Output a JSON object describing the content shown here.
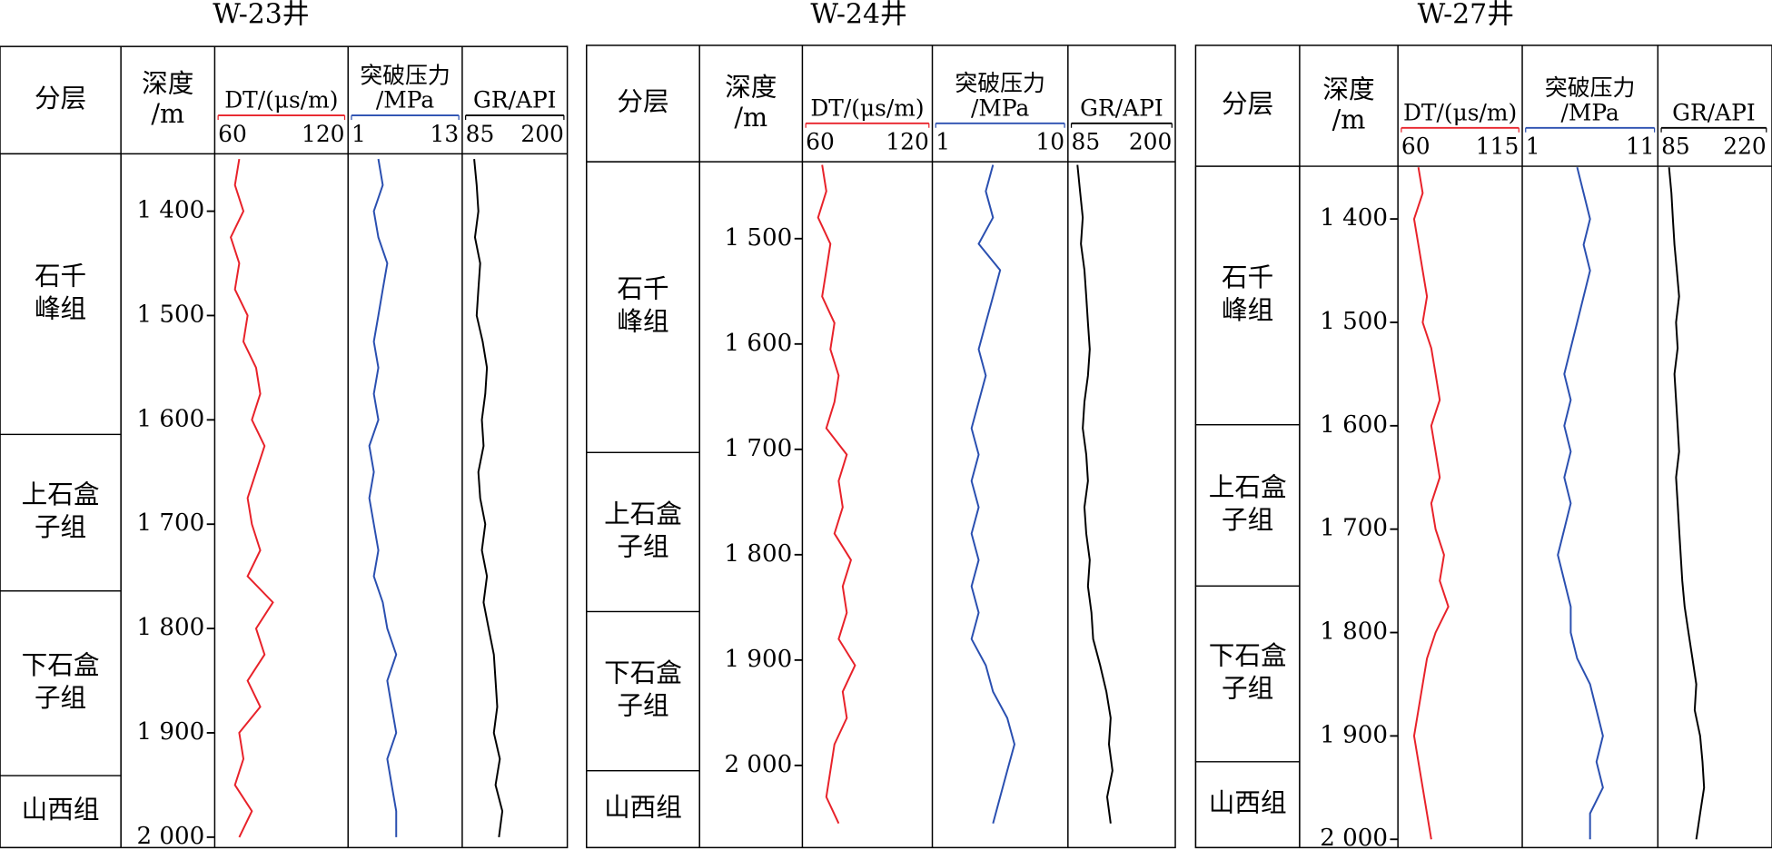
{
  "chart_data": [
    {
      "type": "well-log",
      "title": "W-23井",
      "layer_header": "分层",
      "depth_header": [
        "深度",
        "/m"
      ],
      "ylim": [
        1345,
        2010
      ],
      "yticks": [
        {
          "value": 1400,
          "label": "1 400"
        },
        {
          "value": 1500,
          "label": "1 500"
        },
        {
          "value": 1600,
          "label": "1 600"
        },
        {
          "value": 1700,
          "label": "1 700"
        },
        {
          "value": 1800,
          "label": "1 800"
        },
        {
          "value": 1900,
          "label": "1 900"
        },
        {
          "value": 2000,
          "label": "2 000"
        }
      ],
      "layers": [
        {
          "name": [
            "石千",
            "峰组"
          ],
          "top": 1345,
          "bottom": 1614
        },
        {
          "name": [
            "上石盒",
            "子组"
          ],
          "top": 1614,
          "bottom": 1764
        },
        {
          "name": [
            "下石盒",
            "子组"
          ],
          "top": 1764,
          "bottom": 1941
        },
        {
          "name": [
            "山西组"
          ],
          "top": 1941,
          "bottom": 2010
        }
      ],
      "depths": [
        1350,
        1375,
        1400,
        1425,
        1450,
        1475,
        1500,
        1525,
        1550,
        1575,
        1600,
        1625,
        1650,
        1675,
        1700,
        1725,
        1750,
        1775,
        1800,
        1825,
        1850,
        1875,
        1900,
        1925,
        1950,
        1975,
        2000
      ],
      "series": [
        {
          "name": [
            "DT/(μs/m)"
          ],
          "color": "#e8222a",
          "xlim": [
            60,
            120
          ],
          "xticks": [
            60,
            120
          ],
          "values": [
            70,
            68,
            72,
            66,
            70,
            68,
            74,
            72,
            78,
            80,
            76,
            82,
            78,
            74,
            76,
            80,
            74,
            86,
            78,
            82,
            74,
            80,
            70,
            72,
            68,
            76,
            70
          ]
        },
        {
          "name": [
            "突破压力",
            "/MPa"
          ],
          "color": "#2a4fb0",
          "xlim": [
            1,
            13
          ],
          "xticks": [
            1,
            13
          ],
          "values": [
            4,
            4.5,
            3.5,
            4,
            5,
            4.5,
            4,
            3.5,
            4,
            3.5,
            4,
            3,
            3.5,
            3,
            3.5,
            4,
            3.5,
            4.5,
            5,
            6,
            5,
            5.5,
            6,
            5,
            5.5,
            6,
            6
          ]
        },
        {
          "name": [
            "GR/API"
          ],
          "color": "#000000",
          "xlim": [
            85,
            200
          ],
          "xticks": [
            85,
            200
          ],
          "values": [
            95,
            98,
            100,
            96,
            102,
            100,
            98,
            105,
            110,
            108,
            104,
            106,
            100,
            102,
            108,
            104,
            110,
            106,
            112,
            118,
            120,
            122,
            118,
            125,
            120,
            128,
            124
          ]
        }
      ]
    },
    {
      "type": "well-log",
      "title": "W-24井",
      "layer_header": "分层",
      "depth_header": [
        "深度",
        "/m"
      ],
      "ylim": [
        1427,
        2078
      ],
      "yticks": [
        {
          "value": 1500,
          "label": "1 500"
        },
        {
          "value": 1600,
          "label": "1 600"
        },
        {
          "value": 1700,
          "label": "1 700"
        },
        {
          "value": 1800,
          "label": "1 800"
        },
        {
          "value": 1900,
          "label": "1 900"
        },
        {
          "value": 2000,
          "label": "2 000"
        }
      ],
      "layers": [
        {
          "name": [
            "石千",
            "峰组"
          ],
          "top": 1427,
          "bottom": 1703
        },
        {
          "name": [
            "上石盒",
            "子组"
          ],
          "top": 1703,
          "bottom": 1854
        },
        {
          "name": [
            "下石盒",
            "子组"
          ],
          "top": 1854,
          "bottom": 2005
        },
        {
          "name": [
            "山西组"
          ],
          "top": 2005,
          "bottom": 2078
        }
      ],
      "depths": [
        1430,
        1455,
        1480,
        1505,
        1530,
        1555,
        1580,
        1605,
        1630,
        1655,
        1680,
        1705,
        1730,
        1755,
        1780,
        1805,
        1830,
        1855,
        1880,
        1905,
        1930,
        1955,
        1980,
        2005,
        2030,
        2055
      ],
      "series": [
        {
          "name": [
            "DT/(μs/m)"
          ],
          "color": "#e8222a",
          "xlim": [
            60,
            120
          ],
          "xticks": [
            60,
            120
          ],
          "values": [
            68,
            70,
            66,
            72,
            70,
            68,
            74,
            72,
            76,
            74,
            70,
            80,
            76,
            78,
            74,
            82,
            78,
            80,
            76,
            84,
            78,
            80,
            74,
            72,
            70,
            76
          ]
        },
        {
          "name": [
            "突破压力",
            "/MPa"
          ],
          "color": "#2a4fb0",
          "xlim": [
            1,
            10
          ],
          "xticks": [
            1,
            10
          ],
          "values": [
            5,
            4.5,
            5,
            4,
            5.5,
            5,
            4.5,
            4,
            4.5,
            4,
            3.5,
            4,
            3.5,
            4,
            3.5,
            4,
            3.5,
            4,
            3.5,
            4.5,
            5,
            6,
            6.5,
            6,
            5.5,
            5
          ]
        },
        {
          "name": [
            "GR/API"
          ],
          "color": "#000000",
          "xlim": [
            85,
            200
          ],
          "xticks": [
            85,
            200
          ],
          "values": [
            92,
            95,
            98,
            96,
            100,
            102,
            104,
            106,
            104,
            100,
            98,
            102,
            104,
            100,
            102,
            106,
            104,
            108,
            110,
            118,
            125,
            130,
            128,
            132,
            126,
            130
          ]
        }
      ]
    },
    {
      "type": "well-log",
      "title": "W-27井",
      "layer_header": "分层",
      "depth_header": [
        "深度",
        "/m"
      ],
      "ylim": [
        1349,
        2008
      ],
      "yticks": [
        {
          "value": 1400,
          "label": "1 400"
        },
        {
          "value": 1500,
          "label": "1 500"
        },
        {
          "value": 1600,
          "label": "1 600"
        },
        {
          "value": 1700,
          "label": "1 700"
        },
        {
          "value": 1800,
          "label": "1 800"
        },
        {
          "value": 1900,
          "label": "1 900"
        },
        {
          "value": 2000,
          "label": "2 000"
        }
      ],
      "layers": [
        {
          "name": [
            "石千",
            "峰组"
          ],
          "top": 1349,
          "bottom": 1599
        },
        {
          "name": [
            "上石盒",
            "子组"
          ],
          "top": 1599,
          "bottom": 1755
        },
        {
          "name": [
            "下石盒",
            "子组"
          ],
          "top": 1755,
          "bottom": 1925
        },
        {
          "name": [
            "山西组"
          ],
          "top": 1925,
          "bottom": 2008
        }
      ],
      "depths": [
        1350,
        1375,
        1400,
        1425,
        1450,
        1475,
        1500,
        1525,
        1550,
        1575,
        1600,
        1625,
        1650,
        1675,
        1700,
        1725,
        1750,
        1775,
        1800,
        1825,
        1850,
        1875,
        1900,
        1925,
        1950,
        1975,
        2000
      ],
      "series": [
        {
          "name": [
            "DT/(μs/m)"
          ],
          "color": "#e8222a",
          "xlim": [
            60,
            115
          ],
          "xticks": [
            60,
            115
          ],
          "values": [
            68,
            70,
            66,
            68,
            70,
            72,
            70,
            74,
            76,
            78,
            74,
            76,
            78,
            74,
            76,
            80,
            78,
            82,
            76,
            72,
            70,
            68,
            66,
            68,
            70,
            72,
            74
          ]
        },
        {
          "name": [
            "突破压力",
            "/MPa"
          ],
          "color": "#2a4fb0",
          "xlim": [
            1,
            11
          ],
          "xticks": [
            1,
            11
          ],
          "values": [
            5,
            5.5,
            6,
            5.5,
            6,
            5.5,
            5,
            4.5,
            4,
            4.5,
            4,
            4.5,
            4,
            4.5,
            4,
            3.5,
            4,
            4.5,
            4.5,
            5,
            6,
            6.5,
            7,
            6.5,
            7,
            6,
            6
          ]
        },
        {
          "name": [
            "GR/API"
          ],
          "color": "#000000",
          "xlim": [
            85,
            220
          ],
          "xticks": [
            85,
            220
          ],
          "values": [
            95,
            98,
            100,
            102,
            105,
            108,
            104,
            106,
            102,
            104,
            106,
            108,
            104,
            106,
            108,
            110,
            112,
            115,
            120,
            125,
            130,
            128,
            135,
            138,
            140,
            135,
            130
          ]
        }
      ]
    }
  ]
}
